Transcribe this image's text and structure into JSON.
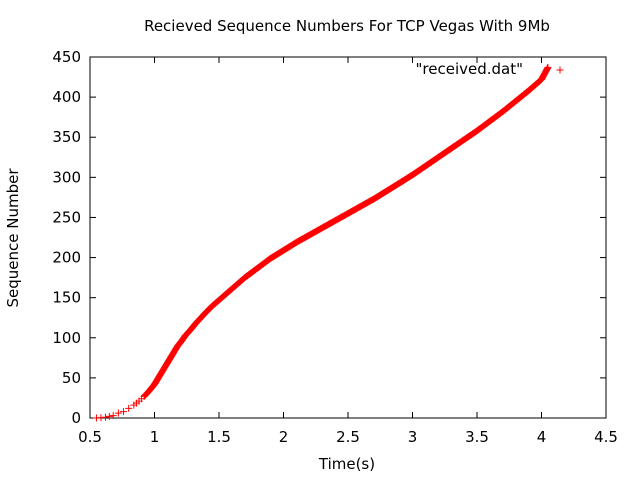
{
  "chart_data": {
    "type": "scatter",
    "title": "Recieved Sequence Numbers For TCP Vegas With 9Mb",
    "xlabel": "Time(s)",
    "ylabel": "Sequence Number",
    "xlim": [
      0.5,
      4.5
    ],
    "ylim": [
      0,
      450
    ],
    "xticks": [
      "0.5",
      "1",
      "1.5",
      "2",
      "2.5",
      "3",
      "3.5",
      "4",
      "4.5"
    ],
    "yticks": [
      "0",
      "50",
      "100",
      "150",
      "200",
      "250",
      "300",
      "350",
      "400",
      "450"
    ],
    "grid": false,
    "legend_position": "top-right",
    "marker": "plus",
    "series": [
      {
        "name": "\"received.dat\"",
        "color": "#ff0000",
        "curve": [
          [
            0.55,
            0
          ],
          [
            0.62,
            1
          ],
          [
            0.68,
            3
          ],
          [
            0.72,
            6
          ],
          [
            0.76,
            8
          ],
          [
            0.8,
            12
          ],
          [
            0.84,
            16
          ],
          [
            0.88,
            21
          ],
          [
            0.92,
            27
          ],
          [
            0.96,
            34
          ],
          [
            1.0,
            42
          ],
          [
            1.03,
            50
          ],
          [
            1.06,
            58
          ],
          [
            1.09,
            66
          ],
          [
            1.12,
            74
          ],
          [
            1.15,
            82
          ],
          [
            1.18,
            90
          ],
          [
            1.21,
            96
          ],
          [
            1.24,
            103
          ],
          [
            1.28,
            110
          ],
          [
            1.32,
            118
          ],
          [
            1.36,
            125
          ],
          [
            1.4,
            132
          ],
          [
            1.45,
            140
          ],
          [
            1.5,
            147
          ],
          [
            1.55,
            154
          ],
          [
            1.6,
            161
          ],
          [
            1.65,
            168
          ],
          [
            1.7,
            175
          ],
          [
            1.75,
            181
          ],
          [
            1.8,
            187
          ],
          [
            1.85,
            193
          ],
          [
            1.9,
            199
          ],
          [
            1.95,
            204
          ],
          [
            2.0,
            209
          ],
          [
            2.1,
            219
          ],
          [
            2.2,
            228
          ],
          [
            2.3,
            237
          ],
          [
            2.4,
            246
          ],
          [
            2.5,
            255
          ],
          [
            2.6,
            264
          ],
          [
            2.7,
            273
          ],
          [
            2.8,
            283
          ],
          [
            2.9,
            293
          ],
          [
            3.0,
            303
          ],
          [
            3.1,
            314
          ],
          [
            3.2,
            325
          ],
          [
            3.3,
            336
          ],
          [
            3.4,
            347
          ],
          [
            3.5,
            358
          ],
          [
            3.6,
            370
          ],
          [
            3.7,
            382
          ],
          [
            3.8,
            395
          ],
          [
            3.9,
            408
          ],
          [
            4.0,
            422
          ],
          [
            4.05,
            437
          ]
        ]
      }
    ]
  }
}
